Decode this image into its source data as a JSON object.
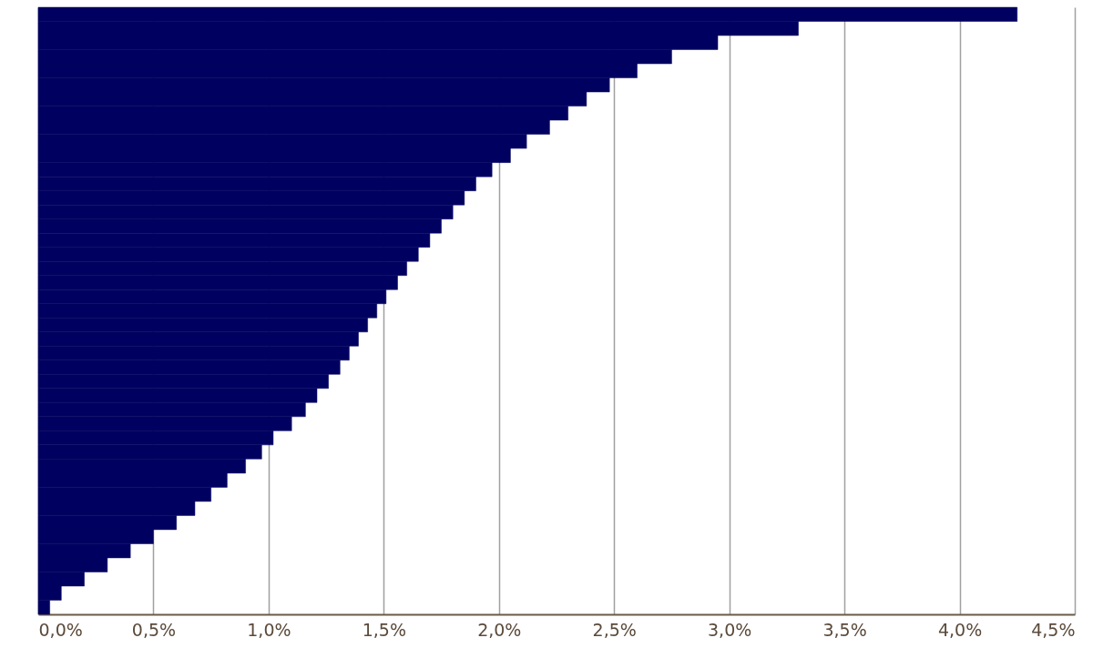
{
  "chart_data": {
    "type": "bar",
    "orientation": "horizontal",
    "categories": [
      null,
      null,
      null,
      null,
      null,
      null,
      null,
      null,
      null,
      null,
      null,
      null,
      null,
      null,
      null,
      null,
      null,
      null,
      null,
      null,
      null,
      null,
      null,
      null,
      null,
      null,
      null,
      null,
      null,
      null,
      null,
      null,
      null,
      null,
      null,
      null,
      null,
      null,
      null,
      null,
      null,
      null,
      null
    ],
    "values": [
      4.25,
      3.3,
      2.95,
      2.75,
      2.6,
      2.48,
      2.38,
      2.3,
      2.22,
      2.12,
      2.05,
      1.97,
      1.9,
      1.85,
      1.8,
      1.75,
      1.7,
      1.65,
      1.6,
      1.56,
      1.51,
      1.47,
      1.43,
      1.39,
      1.35,
      1.31,
      1.26,
      1.21,
      1.16,
      1.1,
      1.02,
      0.97,
      0.9,
      0.82,
      0.75,
      0.68,
      0.6,
      0.5,
      0.4,
      0.3,
      0.2,
      0.1,
      0.05
    ],
    "color": "#000060",
    "xlim": [
      0,
      4.5
    ],
    "xticks": [
      {
        "value": 0,
        "label": "0,0%"
      },
      {
        "value": 0.5,
        "label": "0,5%"
      },
      {
        "value": 1,
        "label": "1,0%"
      },
      {
        "value": 1.5,
        "label": "1,5%"
      },
      {
        "value": 2,
        "label": "2,0%"
      },
      {
        "value": 2.5,
        "label": "2,5%"
      },
      {
        "value": 3,
        "label": "3,0%"
      },
      {
        "value": 3.5,
        "label": "3,5%"
      },
      {
        "value": 4,
        "label": "4,0%"
      },
      {
        "value": 4.5,
        "label": "4,5%"
      }
    ],
    "grid": "x",
    "tick_labels": "x"
  }
}
